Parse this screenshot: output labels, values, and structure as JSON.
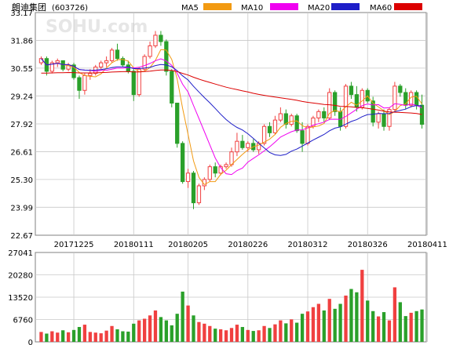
{
  "header": {
    "stock_name": "朗迪集团",
    "stock_code": "(603726)",
    "watermark": "SOHU.com"
  },
  "legend": [
    {
      "label": "MA5",
      "color": "#F29A12"
    },
    {
      "label": "MA10",
      "color": "#F000F0"
    },
    {
      "label": "MA20",
      "color": "#1E1EC8"
    },
    {
      "label": "MA60",
      "color": "#DC0000"
    }
  ],
  "colors": {
    "up": "#F04040",
    "down": "#2AA02A",
    "grid": "#C8C8C8",
    "frame": "#808080",
    "text": "#000000"
  },
  "chart_data": [
    {
      "type": "candlestick",
      "price_ticks": [
        33.17,
        31.86,
        30.55,
        29.24,
        27.92,
        26.61,
        25.3,
        23.99,
        22.67
      ],
      "ylim": [
        22.67,
        33.17
      ],
      "x_ticks": [
        {
          "label": "20171225",
          "day": 6
        },
        {
          "label": "20180111",
          "day": 17
        },
        {
          "label": "20180205",
          "day": 27
        },
        {
          "label": "20180226",
          "day": 38
        },
        {
          "label": "20180312",
          "day": 49
        },
        {
          "label": "20180326",
          "day": 60
        },
        {
          "label": "20180411",
          "day": 71
        }
      ],
      "ohlc": [
        [
          30.8,
          31.1,
          30.7,
          31.0
        ],
        [
          31.0,
          31.1,
          30.2,
          30.4
        ],
        [
          30.4,
          30.9,
          30.3,
          30.8
        ],
        [
          30.8,
          31.0,
          30.6,
          30.9
        ],
        [
          30.9,
          30.9,
          30.4,
          30.5
        ],
        [
          30.5,
          30.8,
          30.4,
          30.7
        ],
        [
          30.7,
          30.8,
          30.0,
          30.1
        ],
        [
          30.1,
          30.2,
          29.1,
          29.5
        ],
        [
          29.5,
          30.3,
          29.3,
          30.2
        ],
        [
          30.2,
          30.5,
          30.0,
          30.3
        ],
        [
          30.3,
          30.7,
          30.2,
          30.6
        ],
        [
          30.6,
          30.9,
          30.5,
          30.8
        ],
        [
          30.8,
          31.1,
          30.6,
          30.9
        ],
        [
          30.9,
          31.5,
          30.8,
          31.4
        ],
        [
          31.4,
          31.7,
          30.9,
          31.0
        ],
        [
          31.0,
          31.1,
          30.6,
          30.7
        ],
        [
          30.7,
          30.9,
          30.3,
          30.4
        ],
        [
          30.4,
          30.5,
          29.0,
          29.3
        ],
        [
          29.3,
          30.6,
          29.2,
          30.5
        ],
        [
          30.5,
          31.2,
          30.4,
          31.1
        ],
        [
          31.1,
          31.8,
          31.0,
          31.6
        ],
        [
          31.6,
          32.3,
          31.5,
          32.1
        ],
        [
          32.1,
          32.3,
          31.6,
          31.8
        ],
        [
          31.8,
          31.9,
          30.2,
          30.4
        ],
        [
          30.4,
          30.5,
          28.7,
          28.9
        ],
        [
          28.9,
          28.9,
          26.8,
          27.0
        ],
        [
          27.0,
          27.1,
          25.1,
          25.2
        ],
        [
          25.2,
          25.8,
          24.9,
          25.6
        ],
        [
          25.6,
          25.7,
          23.9,
          24.2
        ],
        [
          24.2,
          25.1,
          24.1,
          25.0
        ],
        [
          25.0,
          25.4,
          24.8,
          25.3
        ],
        [
          25.3,
          26.0,
          25.2,
          25.9
        ],
        [
          25.9,
          26.1,
          25.4,
          25.6
        ],
        [
          25.6,
          26.0,
          25.5,
          25.9
        ],
        [
          25.9,
          26.1,
          25.8,
          26.0
        ],
        [
          26.0,
          26.8,
          25.9,
          26.6
        ],
        [
          26.6,
          27.5,
          26.4,
          27.1
        ],
        [
          27.1,
          27.4,
          26.7,
          26.8
        ],
        [
          26.8,
          27.1,
          26.6,
          27.0
        ],
        [
          27.0,
          27.2,
          26.6,
          26.7
        ],
        [
          26.7,
          27.1,
          26.5,
          27.0
        ],
        [
          27.0,
          27.9,
          26.9,
          27.8
        ],
        [
          27.8,
          28.0,
          27.3,
          27.5
        ],
        [
          27.5,
          28.3,
          27.4,
          28.1
        ],
        [
          28.1,
          28.7,
          28.0,
          28.4
        ],
        [
          28.4,
          28.6,
          27.7,
          27.9
        ],
        [
          27.9,
          28.4,
          27.8,
          28.3
        ],
        [
          28.3,
          28.4,
          27.5,
          27.6
        ],
        [
          27.6,
          28.0,
          26.6,
          27.0
        ],
        [
          27.0,
          27.9,
          26.9,
          27.8
        ],
        [
          27.8,
          28.3,
          27.7,
          28.2
        ],
        [
          28.2,
          28.6,
          28.0,
          28.5
        ],
        [
          28.5,
          28.7,
          28.0,
          28.2
        ],
        [
          28.2,
          29.6,
          28.1,
          29.4
        ],
        [
          29.4,
          29.5,
          28.3,
          28.5
        ],
        [
          28.5,
          28.7,
          27.6,
          27.8
        ],
        [
          27.8,
          29.8,
          27.7,
          29.7
        ],
        [
          29.7,
          29.9,
          29.1,
          29.3
        ],
        [
          29.3,
          29.7,
          28.5,
          28.7
        ],
        [
          28.7,
          29.6,
          28.6,
          29.5
        ],
        [
          29.5,
          29.6,
          28.9,
          29.0
        ],
        [
          29.0,
          29.2,
          27.8,
          28.0
        ],
        [
          28.0,
          28.5,
          27.7,
          28.4
        ],
        [
          28.4,
          28.6,
          27.6,
          27.8
        ],
        [
          27.8,
          28.7,
          27.6,
          28.6
        ],
        [
          28.6,
          29.9,
          28.5,
          29.7
        ],
        [
          29.7,
          29.8,
          29.2,
          29.4
        ],
        [
          29.4,
          29.6,
          28.6,
          28.8
        ],
        [
          28.8,
          29.5,
          28.7,
          29.4
        ],
        [
          29.4,
          29.5,
          28.6,
          28.8
        ],
        [
          28.8,
          29.3,
          27.7,
          27.9
        ]
      ],
      "volume_ticks": [
        27041,
        20280,
        13520,
        6760,
        0
      ],
      "volume_ylim": [
        0,
        27041
      ],
      "volumes": [
        3000,
        2500,
        3200,
        2800,
        3500,
        2900,
        3600,
        4500,
        5200,
        3000,
        2800,
        2600,
        3400,
        4800,
        3800,
        3200,
        3100,
        5500,
        6500,
        7000,
        8000,
        9500,
        7500,
        6500,
        5000,
        8500,
        15200,
        11000,
        8000,
        6000,
        5500,
        4800,
        4000,
        3800,
        3500,
        4200,
        5200,
        4500,
        3600,
        3300,
        3500,
        4800,
        4200,
        5300,
        6500,
        5600,
        6800,
        5800,
        8500,
        9200,
        10500,
        11500,
        9500,
        13000,
        10000,
        11500,
        14000,
        16000,
        15000,
        21800,
        12500,
        9300,
        7700,
        9000,
        6500,
        16500,
        12000,
        7800,
        8800,
        9300,
        9800
      ]
    }
  ]
}
